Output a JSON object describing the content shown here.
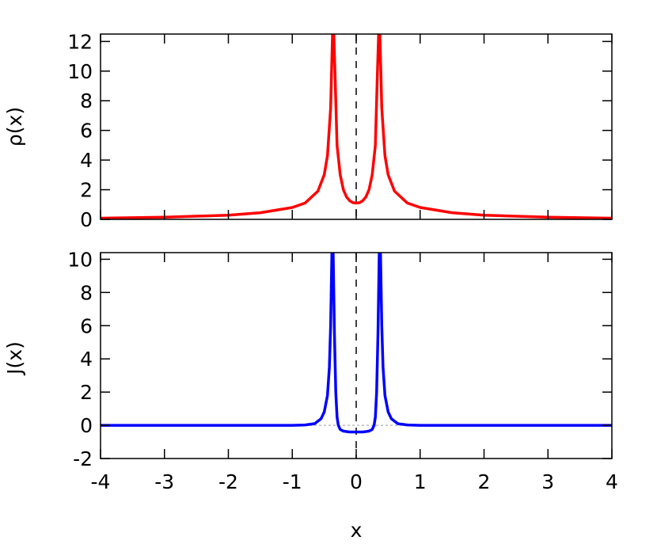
{
  "chart_data": [
    {
      "type": "line",
      "ylabel": "ρ(x)",
      "xlim": [
        -4,
        4
      ],
      "ylim": [
        0,
        12.5
      ],
      "yticks": [
        "0",
        "2",
        "4",
        "6",
        "8",
        "10",
        "12"
      ],
      "vline_x": 0,
      "series": [
        {
          "color": "#ff0000",
          "x": [
            -4,
            -3,
            -2,
            -1.5,
            -1,
            -0.8,
            -0.6,
            -0.5,
            -0.45,
            -0.4,
            -0.37,
            -0.35,
            -0.33,
            -0.3,
            -0.25,
            -0.2,
            -0.15,
            -0.1,
            -0.05,
            0,
            0.05,
            0.1,
            0.15,
            0.2,
            0.25,
            0.3,
            0.33,
            0.35,
            0.37,
            0.4,
            0.45,
            0.5,
            0.6,
            0.8,
            1,
            1.5,
            2,
            3,
            4
          ],
          "y": [
            0.08,
            0.15,
            0.28,
            0.45,
            0.8,
            1.1,
            1.9,
            3.0,
            4.3,
            7.5,
            12.5,
            12.5,
            9.5,
            5.0,
            3.0,
            2.0,
            1.5,
            1.25,
            1.12,
            1.1,
            1.12,
            1.25,
            1.5,
            2.0,
            3.0,
            5.0,
            9.5,
            12.5,
            12.5,
            7.5,
            4.3,
            3.0,
            1.9,
            1.1,
            0.8,
            0.45,
            0.28,
            0.15,
            0.08
          ]
        }
      ]
    },
    {
      "type": "line",
      "xlabel": "x",
      "ylabel": "J(x)",
      "xlim": [
        -4,
        4
      ],
      "ylim": [
        -2,
        10.4
      ],
      "xticks": [
        "-4",
        "-3",
        "-2",
        "-1",
        "0",
        "1",
        "2",
        "3",
        "4"
      ],
      "yticks": [
        "-2",
        "0",
        "2",
        "4",
        "6",
        "8",
        "10"
      ],
      "vline_x": 0,
      "zero_line": true,
      "series": [
        {
          "color": "#0000ff",
          "x": [
            -4,
            -2,
            -1,
            -0.8,
            -0.65,
            -0.55,
            -0.5,
            -0.45,
            -0.42,
            -0.4,
            -0.38,
            -0.36,
            -0.34,
            -0.32,
            -0.3,
            -0.28,
            -0.25,
            -0.2,
            -0.15,
            -0.1,
            -0.05,
            0,
            0.05,
            0.1,
            0.15,
            0.2,
            0.25,
            0.28,
            0.3,
            0.32,
            0.34,
            0.36,
            0.38,
            0.4,
            0.42,
            0.45,
            0.5,
            0.55,
            0.65,
            0.8,
            1,
            2,
            4
          ],
          "y": [
            0,
            0,
            0,
            0.02,
            0.1,
            0.4,
            0.8,
            1.8,
            3.5,
            6.0,
            10.4,
            10.4,
            5.5,
            2.0,
            0.5,
            0.0,
            -0.25,
            -0.35,
            -0.38,
            -0.4,
            -0.4,
            -0.4,
            -0.4,
            -0.4,
            -0.38,
            -0.35,
            -0.25,
            0.0,
            0.5,
            2.0,
            5.5,
            10.4,
            10.4,
            6.0,
            3.5,
            1.8,
            0.8,
            0.4,
            0.1,
            0.02,
            0,
            0,
            0
          ]
        }
      ]
    }
  ]
}
